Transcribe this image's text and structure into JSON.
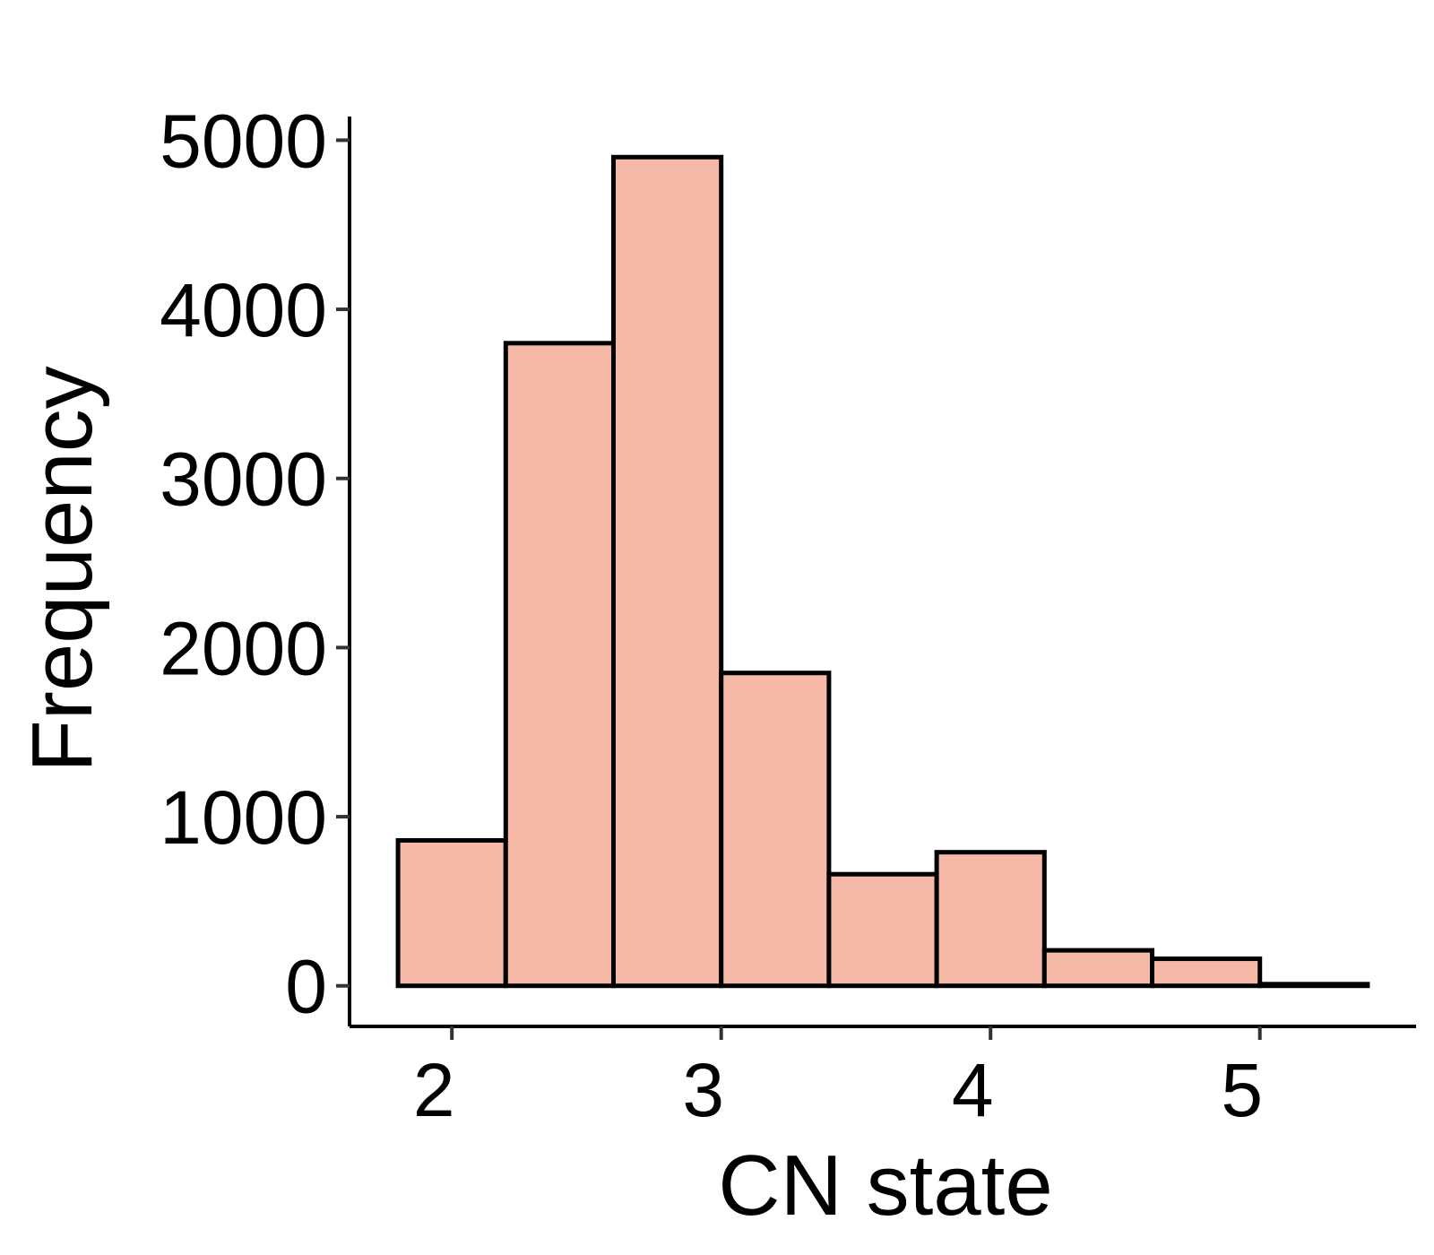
{
  "chart_data": {
    "type": "bar",
    "subtype": "histogram",
    "title": "",
    "xlabel": "CN state",
    "ylabel": "Frequency",
    "bins": [
      {
        "x0": 1.8,
        "x1": 2.2,
        "value": 860
      },
      {
        "x0": 2.2,
        "x1": 2.6,
        "value": 3800
      },
      {
        "x0": 2.6,
        "x1": 3.0,
        "value": 4900
      },
      {
        "x0": 3.0,
        "x1": 3.4,
        "value": 1850
      },
      {
        "x0": 3.4,
        "x1": 3.8,
        "value": 660
      },
      {
        "x0": 3.8,
        "x1": 4.2,
        "value": 790
      },
      {
        "x0": 4.2,
        "x1": 4.6,
        "value": 210
      },
      {
        "x0": 4.6,
        "x1": 5.0,
        "value": 160
      },
      {
        "x0": 5.0,
        "x1": 5.4,
        "value": 10
      }
    ],
    "xlim": [
      1.62,
      5.58
    ],
    "ylim": [
      -240,
      5140
    ],
    "xticks": [
      2,
      3,
      4,
      5
    ],
    "xtick_labels": [
      "2",
      "3",
      "4",
      "5"
    ],
    "yticks": [
      0,
      1000,
      2000,
      3000,
      4000,
      5000
    ],
    "ytick_labels": [
      "0",
      "1000",
      "2000",
      "3000",
      "4000",
      "5000"
    ],
    "bar_fill": "#f6b9a8",
    "bar_stroke": "#000000",
    "grid": false,
    "legend": "none"
  }
}
